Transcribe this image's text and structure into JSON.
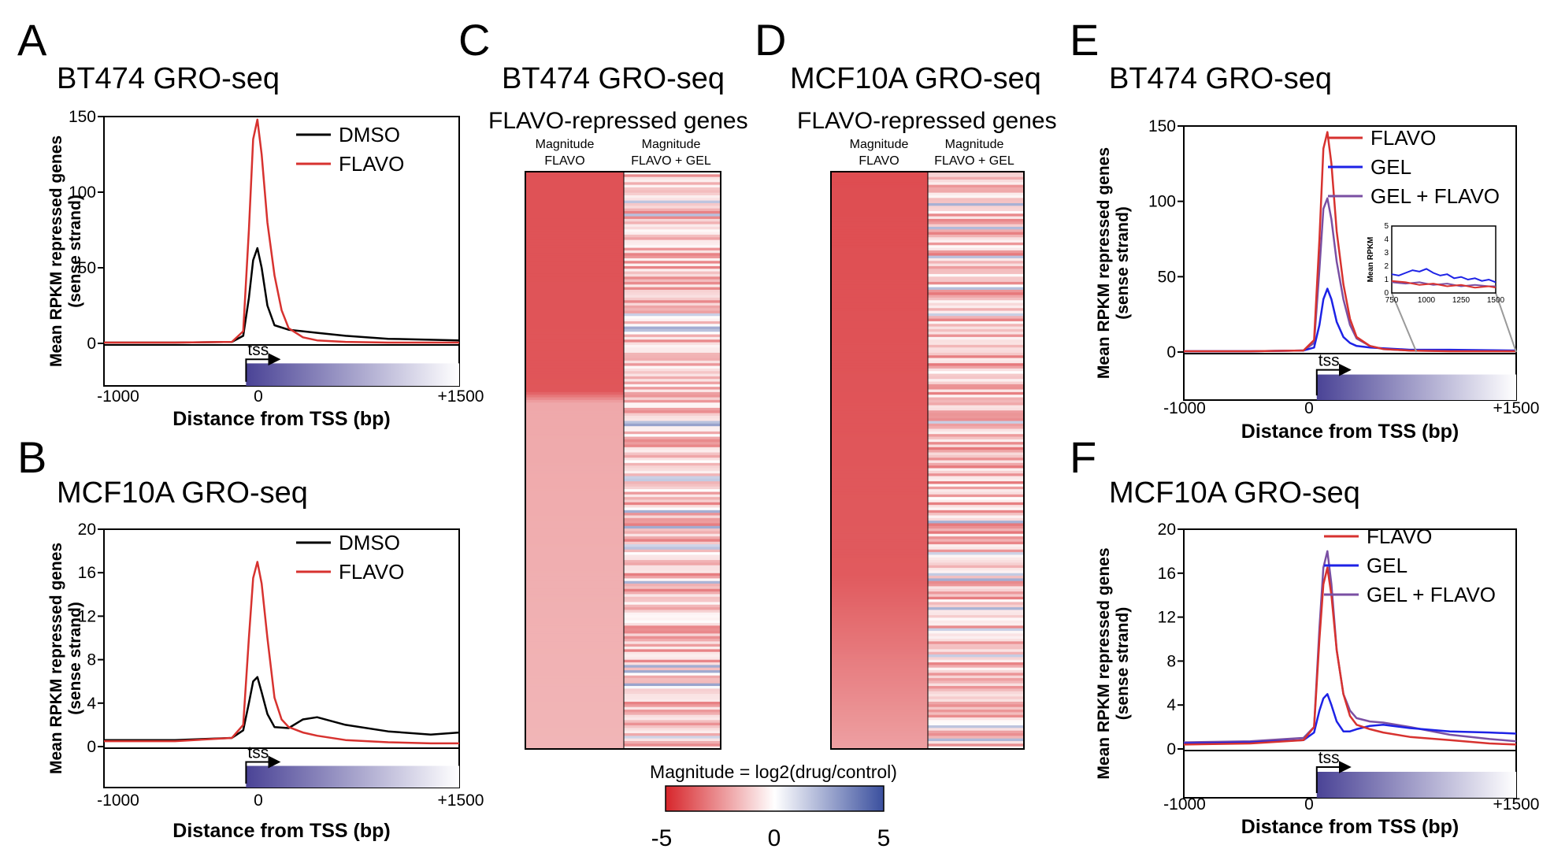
{
  "panel_letters": [
    "A",
    "B",
    "C",
    "D",
    "E",
    "F"
  ],
  "colors": {
    "dmso": "#000000",
    "flavo": "#d7322f",
    "gel": "#1d22e6",
    "gel_flavo": "#7a4fa3",
    "heat_low": "#d7262b",
    "heat_mid": "#ffffff",
    "heat_high": "#3a4f9e",
    "tss_bar": "#4a4396"
  },
  "colorbar": {
    "label": "Magnitude = log2(drug/control)",
    "ticks": [
      "-5",
      "0",
      "5"
    ]
  },
  "chart_data": [
    {
      "id": "A",
      "type": "line",
      "title": "BT474 GRO-seq",
      "xlabel": "Distance from TSS (bp)",
      "ylabel": "Mean RPKM repressed genes (sense strand)",
      "xlim": [
        -1000,
        1500
      ],
      "ylim": [
        0,
        150
      ],
      "yticks": [
        "0",
        "50",
        "100",
        "150"
      ],
      "xticks": [
        "-1000",
        "0",
        "+1500"
      ],
      "tss_label": "tss",
      "series": [
        {
          "name": "DMSO",
          "color": "#000000",
          "x": [
            -1000,
            -500,
            -100,
            -20,
            20,
            50,
            80,
            110,
            150,
            200,
            300,
            500,
            700,
            1000,
            1500
          ],
          "y": [
            0.5,
            0.5,
            1,
            5,
            30,
            55,
            63,
            50,
            25,
            12,
            9,
            7,
            5,
            3,
            2
          ]
        },
        {
          "name": "FLAVO",
          "color": "#d7322f",
          "x": [
            -1000,
            -500,
            -100,
            -20,
            20,
            50,
            80,
            110,
            150,
            200,
            250,
            300,
            400,
            500,
            700,
            1000,
            1500
          ],
          "y": [
            0.5,
            0.5,
            1,
            8,
            75,
            135,
            148,
            125,
            80,
            45,
            22,
            10,
            4,
            2,
            1,
            0.5,
            0.5
          ]
        }
      ]
    },
    {
      "id": "B",
      "type": "line",
      "title": "MCF10A GRO-seq",
      "xlabel": "Distance from TSS (bp)",
      "ylabel": "Mean RPKM repressed genes (sense strand)",
      "xlim": [
        -1000,
        1500
      ],
      "ylim": [
        0,
        20
      ],
      "yticks": [
        "0",
        "4",
        "8",
        "12",
        "16",
        "20"
      ],
      "xticks": [
        "-1000",
        "0",
        "+1500"
      ],
      "tss_label": "tss",
      "series": [
        {
          "name": "DMSO",
          "color": "#000000",
          "x": [
            -1000,
            -500,
            -100,
            -20,
            20,
            50,
            80,
            110,
            150,
            200,
            300,
            400,
            500,
            700,
            1000,
            1300,
            1500
          ],
          "y": [
            0.6,
            0.6,
            0.8,
            1.5,
            4,
            6,
            6.4,
            5,
            3,
            1.8,
            1.7,
            2.5,
            2.7,
            2,
            1.4,
            1.1,
            1.3
          ]
        },
        {
          "name": "FLAVO",
          "color": "#d7322f",
          "x": [
            -1000,
            -500,
            -100,
            -20,
            20,
            50,
            80,
            110,
            150,
            200,
            250,
            300,
            400,
            500,
            700,
            1000,
            1300,
            1500
          ],
          "y": [
            0.5,
            0.5,
            0.8,
            2,
            10,
            15.5,
            17,
            15,
            10,
            4.5,
            2.5,
            1.8,
            1.3,
            1,
            0.6,
            0.4,
            0.3,
            0.3
          ]
        }
      ]
    },
    {
      "id": "C",
      "type": "heatmap",
      "title": "BT474 GRO-seq",
      "subtitle": "FLAVO-repressed genes",
      "columns": [
        "Magnitude FLAVO",
        "Magnitude FLAVO + GEL"
      ],
      "col1_lines": [
        "Magnitude",
        "FLAVO"
      ],
      "col2_lines": [
        "Magnitude",
        "FLAVO + GEL"
      ],
      "value_range": [
        -5,
        5
      ],
      "col1_profile": [
        [
          0,
          -4.0
        ],
        [
          0.38,
          -3.9
        ],
        [
          0.4,
          -2.0
        ],
        [
          1,
          -1.7
        ]
      ],
      "col2_mean": -1.4
    },
    {
      "id": "D",
      "type": "heatmap",
      "title": "MCF10A GRO-seq",
      "subtitle": "FLAVO-repressed genes",
      "columns": [
        "Magnitude FLAVO",
        "Magnitude FLAVO + GEL"
      ],
      "col1_lines": [
        "Magnitude",
        "FLAVO"
      ],
      "col2_lines": [
        "Magnitude",
        "FLAVO + GEL"
      ],
      "value_range": [
        -5,
        5
      ],
      "col1_profile": [
        [
          0,
          -4.1
        ],
        [
          0.7,
          -3.8
        ],
        [
          1,
          -2.2
        ]
      ],
      "col2_mean": -1.6
    },
    {
      "id": "E",
      "type": "line",
      "title": "BT474 GRO-seq",
      "xlabel": "Distance from TSS (bp)",
      "ylabel": "Mean RPKM repressed genes (sense strand)",
      "xlim": [
        -1000,
        1500
      ],
      "ylim": [
        0,
        150
      ],
      "yticks": [
        "0",
        "50",
        "100",
        "150"
      ],
      "xticks": [
        "-1000",
        "0",
        "+1500"
      ],
      "tss_label": "tss",
      "series": [
        {
          "name": "FLAVO",
          "color": "#d7322f",
          "x": [
            -1000,
            -500,
            -100,
            -20,
            20,
            50,
            80,
            110,
            150,
            200,
            250,
            300,
            400,
            500,
            700,
            1000,
            1500
          ],
          "y": [
            0.5,
            0.5,
            1,
            8,
            75,
            135,
            146,
            125,
            80,
            45,
            22,
            10,
            4,
            2,
            1,
            0.5,
            0.5
          ]
        },
        {
          "name": "GEL",
          "color": "#1d22e6",
          "x": [
            -1000,
            -500,
            -100,
            -20,
            20,
            50,
            80,
            110,
            150,
            200,
            250,
            300,
            400,
            500,
            700,
            1000,
            1500
          ],
          "y": [
            0.5,
            0.5,
            1,
            3,
            18,
            35,
            42,
            35,
            20,
            10,
            6,
            4,
            3,
            2.5,
            1.5,
            1.5,
            1
          ]
        },
        {
          "name": "GEL + FLAVO",
          "color": "#7a4fa3",
          "x": [
            -1000,
            -500,
            -100,
            -20,
            20,
            50,
            80,
            110,
            150,
            200,
            250,
            300,
            400,
            500,
            700,
            1000,
            1500
          ],
          "y": [
            0.5,
            0.5,
            1,
            6,
            55,
            95,
            102,
            88,
            60,
            35,
            18,
            9,
            4,
            2,
            1,
            0.7,
            0.5
          ]
        }
      ],
      "inset": {
        "ylabel": "Mean RPKM",
        "xlim": [
          750,
          1500
        ],
        "ylim": [
          0,
          5
        ],
        "xticks": [
          "750",
          "1000",
          "1250",
          "1500"
        ],
        "yticks": [
          "0",
          "1",
          "2",
          "3",
          "4",
          "5"
        ],
        "series": [
          {
            "name": "GEL",
            "x": [
              750,
              800,
              850,
              900,
              950,
              1000,
              1050,
              1100,
              1150,
              1200,
              1250,
              1300,
              1350,
              1400,
              1450,
              1500
            ],
            "y": [
              1.4,
              1.3,
              1.5,
              1.7,
              1.6,
              1.8,
              1.5,
              1.3,
              1.4,
              1.1,
              1.2,
              1.0,
              1.1,
              0.9,
              1.0,
              0.8
            ]
          },
          {
            "name": "GEL + FLAVO",
            "x": [
              750,
              850,
              950,
              1050,
              1150,
              1250,
              1350,
              1450,
              1500
            ],
            "y": [
              0.8,
              0.7,
              0.8,
              0.6,
              0.7,
              0.5,
              0.6,
              0.5,
              0.5
            ]
          },
          {
            "name": "FLAVO",
            "x": [
              750,
              850,
              950,
              1050,
              1150,
              1250,
              1350,
              1450,
              1500
            ],
            "y": [
              0.9,
              0.8,
              0.6,
              0.7,
              0.5,
              0.6,
              0.4,
              0.5,
              0.4
            ]
          }
        ]
      }
    },
    {
      "id": "F",
      "type": "line",
      "title": "MCF10A GRO-seq",
      "xlabel": "Distance from TSS (bp)",
      "ylabel": "Mean RPKM repressed genes (sense strand)",
      "xlim": [
        -1000,
        1500
      ],
      "ylim": [
        0,
        20
      ],
      "yticks": [
        "0",
        "4",
        "8",
        "12",
        "16",
        "20"
      ],
      "xticks": [
        "-1000",
        "0",
        "+1500"
      ],
      "tss_label": "tss",
      "series": [
        {
          "name": "FLAVO",
          "color": "#d7322f",
          "x": [
            -1000,
            -500,
            -100,
            -20,
            20,
            50,
            80,
            110,
            150,
            200,
            250,
            300,
            400,
            500,
            700,
            1000,
            1300,
            1500
          ],
          "y": [
            0.4,
            0.5,
            0.8,
            2,
            10,
            15,
            16.5,
            14,
            9,
            5,
            3,
            2.2,
            1.8,
            1.5,
            1.1,
            0.8,
            0.5,
            0.4
          ]
        },
        {
          "name": "GEL",
          "color": "#1d22e6",
          "x": [
            -1000,
            -500,
            -100,
            -20,
            20,
            50,
            80,
            110,
            150,
            200,
            250,
            300,
            400,
            500,
            700,
            1000,
            1300,
            1500
          ],
          "y": [
            0.5,
            0.6,
            0.8,
            1.5,
            3.5,
            4.6,
            5,
            4,
            2.5,
            1.6,
            1.6,
            1.8,
            2.1,
            2.2,
            1.9,
            1.6,
            1.5,
            1.4
          ]
        },
        {
          "name": "GEL + FLAVO",
          "color": "#7a4fa3",
          "x": [
            -1000,
            -500,
            -100,
            -20,
            20,
            50,
            80,
            110,
            150,
            200,
            250,
            300,
            400,
            500,
            700,
            1000,
            1300,
            1500
          ],
          "y": [
            0.6,
            0.7,
            1,
            2,
            11,
            16.5,
            18,
            15,
            9,
            5,
            3.5,
            2.8,
            2.5,
            2.4,
            2,
            1.3,
            0.9,
            0.7
          ]
        }
      ]
    }
  ]
}
